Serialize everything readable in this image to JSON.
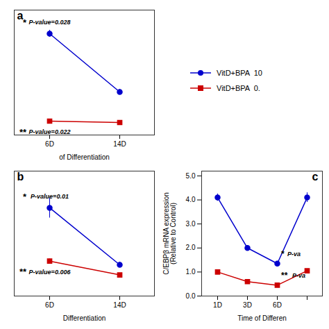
{
  "chart_data": [
    {
      "type": "line",
      "title": "a",
      "categories": [
        "6D",
        "14D"
      ],
      "xlabel": "of Differentiation",
      "ylim": [
        -0.5,
        8.5
      ],
      "yticks": [],
      "tick_labels": "x",
      "series": [
        {
          "name": "VitD+BPA  10",
          "color": "#0000CD",
          "marker": "circle",
          "values": [
            6.8,
            2.6
          ],
          "errors": [
            0.25,
            0.2
          ]
        },
        {
          "name": "VitD+BPA  0.",
          "color": "#CC0000",
          "marker": "square",
          "values": [
            0.5,
            0.4
          ],
          "errors": [
            0.04,
            0.04
          ]
        }
      ],
      "annotations": [
        {
          "series": "VitD+BPA  10",
          "category": "6D",
          "texts": [
            "*",
            "P-value=0.028"
          ]
        },
        {
          "series": "VitD+BPA  0.",
          "category": "6D",
          "texts": [
            "**",
            "P-value=0.022"
          ]
        }
      ]
    },
    {
      "type": "line",
      "title": "b",
      "categories": [
        "6D",
        "14D"
      ],
      "xlabel": "Differentiation",
      "ylim": [
        -0.3,
        6.5
      ],
      "yticks": [],
      "tick_labels": "x",
      "series": [
        {
          "name": "VitD+BPA  10",
          "color": "#0000CD",
          "marker": "circle",
          "values": [
            4.5,
            1.4
          ],
          "errors": [
            0.55,
            0.15
          ]
        },
        {
          "name": "VitD+BPA  0.",
          "color": "#CC0000",
          "marker": "square",
          "values": [
            1.6,
            0.85
          ],
          "errors": [
            0.12,
            0.08
          ]
        }
      ],
      "annotations": [
        {
          "series": "VitD+BPA  10",
          "category": "6D",
          "texts": [
            "*",
            "P-value=0.01"
          ]
        },
        {
          "series": "VitD+BPA  0.",
          "category": "6D",
          "texts": [
            "**",
            "P-value=0.006"
          ]
        }
      ]
    },
    {
      "type": "line",
      "title": "c",
      "categories": [
        "1D",
        "3D",
        "6D",
        null
      ],
      "xlabel": "Time of Differen",
      "ylabel": "C/EBPβ mRNA expression\n(Relative to Control)",
      "ylim": [
        0,
        5.2
      ],
      "yticks": [
        0,
        1,
        2,
        3,
        4,
        5
      ],
      "series": [
        {
          "name": "VitD+BPA  10",
          "color": "#0000CD",
          "marker": "circle",
          "values": [
            4.1,
            2.0,
            1.35,
            4.1
          ],
          "errors": [
            0.15,
            0.1,
            0.1,
            0.2
          ]
        },
        {
          "name": "VitD+BPA  0.",
          "color": "#CC0000",
          "marker": "square",
          "values": [
            1.0,
            0.6,
            0.45,
            1.05
          ],
          "errors": [
            0.08,
            0.05,
            0.05,
            0.08
          ]
        }
      ],
      "annotations": [
        {
          "series": "VitD+BPA  10",
          "category": "6D",
          "texts": [
            "*",
            " P-va"
          ]
        },
        {
          "series": "VitD+BPA  0.",
          "category": "6D",
          "texts": [
            "**",
            " P-va"
          ]
        }
      ]
    }
  ]
}
